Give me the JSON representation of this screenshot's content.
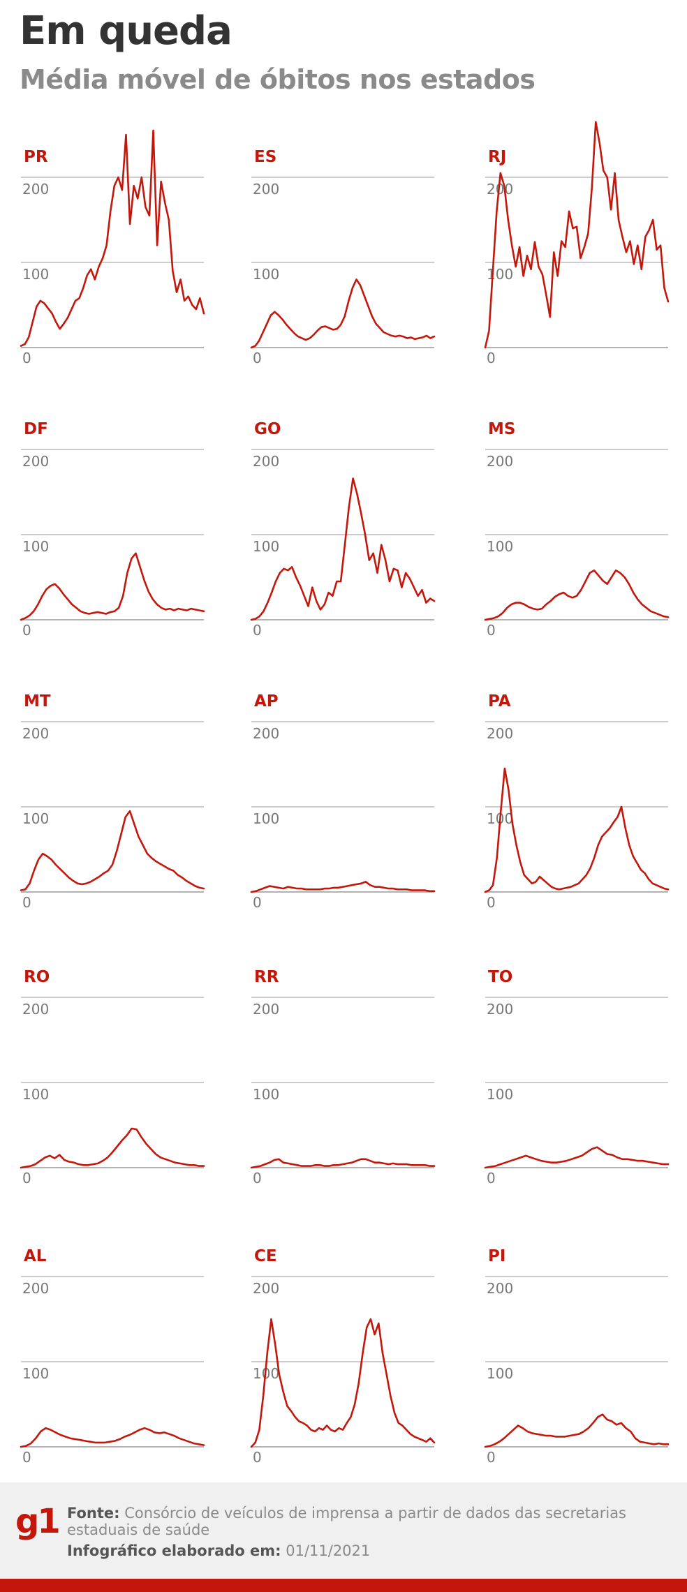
{
  "header": {
    "title": "Em queda",
    "subtitle": "Média móvel de óbitos nos estados"
  },
  "footer": {
    "logo": "g1",
    "source_label": "Fonte:",
    "source_text": "Consórcio de veículos de imprensa a partir de dados das secretarias estaduais de saúde",
    "date_label": "Infográfico elaborado em:",
    "date_value": "01/11/2021"
  },
  "colors": {
    "line": "#c4170c",
    "grid": "#bbbbbb",
    "tick": "#777777",
    "title": "#333333",
    "subtitle": "#8a8a8a"
  },
  "chart_data": [
    {
      "type": "line",
      "title": "PR",
      "ylim": [
        0,
        200
      ],
      "yticks": [
        0,
        100,
        200
      ],
      "series": [
        {
          "values": [
            2,
            4,
            12,
            30,
            48,
            55,
            52,
            46,
            40,
            30,
            22,
            28,
            35,
            45,
            55,
            58,
            70,
            85,
            92,
            80,
            95,
            105,
            120,
            160,
            190,
            200,
            185,
            250,
            145,
            190,
            175,
            200,
            165,
            155,
            255,
            120,
            195,
            170,
            150,
            90,
            65,
            80,
            55,
            60,
            50,
            45,
            58,
            40
          ]
        }
      ]
    },
    {
      "type": "line",
      "title": "ES",
      "ylim": [
        0,
        200
      ],
      "yticks": [
        0,
        100,
        200
      ],
      "series": [
        {
          "values": [
            0,
            2,
            8,
            18,
            28,
            38,
            42,
            38,
            33,
            27,
            22,
            17,
            13,
            11,
            9,
            11,
            15,
            20,
            24,
            25,
            23,
            21,
            22,
            27,
            37,
            55,
            70,
            80,
            73,
            61,
            49,
            37,
            28,
            23,
            18,
            16,
            14,
            13,
            14,
            13,
            11,
            12,
            10,
            11,
            12,
            14,
            11,
            13
          ]
        }
      ]
    },
    {
      "type": "line",
      "title": "RJ",
      "ylim": [
        0,
        200
      ],
      "yticks": [
        0,
        100,
        200
      ],
      "series": [
        {
          "values": [
            0,
            20,
            90,
            160,
            205,
            190,
            150,
            120,
            95,
            118,
            84,
            108,
            92,
            124,
            95,
            86,
            62,
            36,
            112,
            84,
            125,
            118,
            160,
            140,
            142,
            105,
            118,
            134,
            188,
            265,
            240,
            208,
            200,
            162,
            205,
            150,
            130,
            112,
            125,
            98,
            120,
            92,
            130,
            138,
            150,
            115,
            120,
            70,
            54
          ]
        }
      ]
    },
    {
      "type": "line",
      "title": "DF",
      "ylim": [
        0,
        200
      ],
      "yticks": [
        0,
        100,
        200
      ],
      "series": [
        {
          "values": [
            0,
            2,
            5,
            10,
            18,
            28,
            36,
            40,
            42,
            37,
            30,
            24,
            18,
            14,
            10,
            8,
            7,
            8,
            9,
            8,
            7,
            9,
            10,
            14,
            28,
            55,
            72,
            78,
            62,
            46,
            33,
            24,
            18,
            14,
            12,
            13,
            11,
            13,
            12,
            11,
            13,
            12,
            11,
            10
          ]
        }
      ]
    },
    {
      "type": "line",
      "title": "GO",
      "ylim": [
        0,
        200
      ],
      "yticks": [
        0,
        100,
        200
      ],
      "series": [
        {
          "values": [
            0,
            1,
            4,
            10,
            20,
            32,
            45,
            55,
            60,
            58,
            62,
            50,
            40,
            28,
            16,
            38,
            22,
            12,
            18,
            32,
            28,
            45,
            45,
            88,
            132,
            166,
            148,
            125,
            100,
            70,
            78,
            55,
            88,
            70,
            45,
            60,
            58,
            38,
            55,
            48,
            38,
            28,
            35,
            20,
            25,
            22
          ]
        }
      ]
    },
    {
      "type": "line",
      "title": "MS",
      "ylim": [
        0,
        200
      ],
      "yticks": [
        0,
        100,
        200
      ],
      "series": [
        {
          "values": [
            0,
            1,
            2,
            4,
            8,
            14,
            18,
            20,
            20,
            18,
            15,
            13,
            12,
            13,
            18,
            22,
            27,
            30,
            32,
            28,
            26,
            28,
            35,
            45,
            55,
            58,
            52,
            46,
            42,
            50,
            58,
            55,
            50,
            42,
            32,
            24,
            18,
            14,
            10,
            8,
            6,
            4,
            3
          ]
        }
      ]
    },
    {
      "type": "line",
      "title": "MT",
      "ylim": [
        0,
        200
      ],
      "yticks": [
        0,
        100,
        200
      ],
      "series": [
        {
          "values": [
            2,
            3,
            10,
            25,
            38,
            45,
            42,
            38,
            32,
            27,
            22,
            17,
            13,
            10,
            9,
            10,
            12,
            15,
            18,
            22,
            25,
            32,
            48,
            68,
            88,
            95,
            80,
            65,
            55,
            45,
            40,
            36,
            33,
            30,
            27,
            25,
            20,
            17,
            13,
            10,
            7,
            5,
            4
          ]
        }
      ]
    },
    {
      "type": "line",
      "title": "AP",
      "ylim": [
        0,
        200
      ],
      "yticks": [
        0,
        100,
        200
      ],
      "series": [
        {
          "values": [
            0,
            1,
            3,
            5,
            7,
            6,
            5,
            4,
            6,
            5,
            4,
            4,
            3,
            3,
            3,
            3,
            4,
            4,
            5,
            5,
            6,
            7,
            8,
            9,
            10,
            12,
            8,
            6,
            6,
            5,
            4,
            4,
            3,
            3,
            3,
            2,
            2,
            2,
            2,
            1,
            1
          ]
        }
      ]
    },
    {
      "type": "line",
      "title": "PA",
      "ylim": [
        0,
        200
      ],
      "yticks": [
        0,
        100,
        200
      ],
      "series": [
        {
          "values": [
            0,
            2,
            8,
            40,
            95,
            145,
            120,
            80,
            55,
            35,
            20,
            15,
            10,
            12,
            18,
            14,
            10,
            6,
            4,
            3,
            4,
            5,
            6,
            8,
            10,
            15,
            20,
            28,
            40,
            55,
            65,
            70,
            75,
            82,
            88,
            100,
            75,
            55,
            42,
            34,
            26,
            22,
            15,
            10,
            8,
            6,
            4,
            3
          ]
        }
      ]
    },
    {
      "type": "line",
      "title": "RO",
      "ylim": [
        0,
        200
      ],
      "yticks": [
        0,
        100,
        200
      ],
      "series": [
        {
          "values": [
            0,
            1,
            2,
            4,
            8,
            12,
            14,
            11,
            15,
            9,
            7,
            6,
            4,
            3,
            3,
            4,
            5,
            8,
            12,
            18,
            25,
            32,
            38,
            46,
            45,
            36,
            28,
            22,
            16,
            12,
            10,
            8,
            6,
            5,
            4,
            3,
            3,
            2,
            2
          ]
        }
      ]
    },
    {
      "type": "line",
      "title": "RR",
      "ylim": [
        0,
        200
      ],
      "yticks": [
        0,
        100,
        200
      ],
      "series": [
        {
          "values": [
            0,
            1,
            2,
            4,
            6,
            9,
            10,
            6,
            5,
            4,
            3,
            2,
            2,
            2,
            3,
            3,
            2,
            2,
            3,
            3,
            4,
            5,
            6,
            8,
            10,
            10,
            8,
            6,
            6,
            5,
            4,
            5,
            4,
            4,
            4,
            3,
            3,
            3,
            3,
            2,
            2
          ]
        }
      ]
    },
    {
      "type": "line",
      "title": "TO",
      "ylim": [
        0,
        200
      ],
      "yticks": [
        0,
        100,
        200
      ],
      "series": [
        {
          "values": [
            0,
            1,
            2,
            4,
            6,
            8,
            10,
            12,
            14,
            12,
            10,
            8,
            7,
            6,
            6,
            7,
            8,
            10,
            12,
            14,
            18,
            22,
            24,
            20,
            16,
            15,
            12,
            10,
            10,
            9,
            8,
            8,
            7,
            6,
            5,
            4,
            4
          ]
        }
      ]
    },
    {
      "type": "line",
      "title": "AL",
      "ylim": [
        0,
        200
      ],
      "yticks": [
        0,
        100,
        200
      ],
      "series": [
        {
          "values": [
            0,
            1,
            4,
            10,
            18,
            22,
            20,
            17,
            14,
            12,
            10,
            9,
            8,
            7,
            6,
            5,
            5,
            5,
            6,
            7,
            9,
            12,
            14,
            17,
            20,
            22,
            20,
            17,
            16,
            17,
            15,
            13,
            10,
            8,
            6,
            4,
            3,
            2
          ]
        }
      ]
    },
    {
      "type": "line",
      "title": "CE",
      "ylim": [
        0,
        200
      ],
      "yticks": [
        0,
        100,
        200
      ],
      "series": [
        {
          "values": [
            0,
            5,
            20,
            60,
            110,
            150,
            120,
            85,
            65,
            48,
            42,
            35,
            30,
            28,
            25,
            20,
            18,
            22,
            20,
            25,
            20,
            18,
            22,
            20,
            28,
            35,
            50,
            75,
            110,
            140,
            150,
            132,
            145,
            110,
            85,
            60,
            40,
            28,
            25,
            20,
            15,
            12,
            10,
            8,
            6,
            10,
            5
          ]
        }
      ]
    },
    {
      "type": "line",
      "title": "PI",
      "ylim": [
        0,
        200
      ],
      "yticks": [
        0,
        100,
        200
      ],
      "series": [
        {
          "values": [
            0,
            1,
            3,
            6,
            10,
            15,
            20,
            25,
            22,
            18,
            16,
            15,
            14,
            13,
            13,
            12,
            12,
            12,
            13,
            14,
            15,
            18,
            22,
            28,
            35,
            38,
            32,
            30,
            26,
            28,
            22,
            18,
            10,
            6,
            5,
            4,
            3,
            4,
            3,
            3
          ]
        }
      ]
    }
  ]
}
